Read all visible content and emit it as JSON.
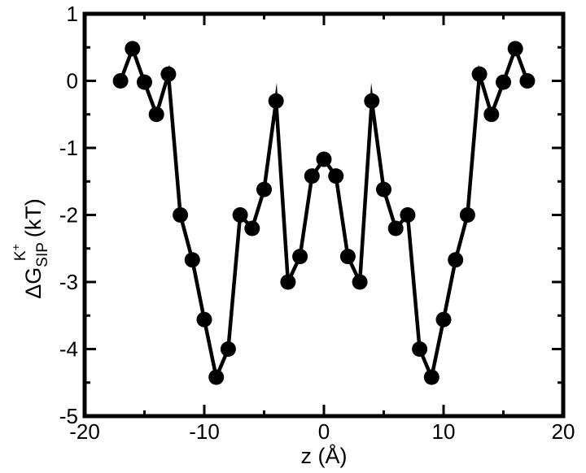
{
  "chart_data": {
    "type": "line",
    "xlabel": "z (Å)",
    "ylabel": {
      "base": "ΔG",
      "subscript": "SIP",
      "superscript_ion": "K",
      "superscript_charge": "+",
      "unit": "(kT)"
    },
    "xlim": [
      -20,
      20
    ],
    "ylim": [
      -5,
      1
    ],
    "x_ticks": [
      -20,
      -10,
      0,
      10,
      20
    ],
    "x_tick_labels": [
      "-20",
      "-10",
      "0",
      "10",
      "20"
    ],
    "y_ticks": [
      -5,
      -4,
      -3,
      -2,
      -1,
      0,
      1
    ],
    "y_tick_labels": [
      "-5",
      "-4",
      "-3",
      "-2",
      "-1",
      "0",
      "1"
    ],
    "grid": false,
    "legend": "none",
    "series": [
      {
        "color": "#000000",
        "marker": "filled-circle",
        "x": [
          -17,
          -16,
          -15,
          -14,
          -13,
          -12,
          -11,
          -10,
          -9,
          -8,
          -7,
          -6,
          -5,
          -4,
          -3,
          -2,
          -1,
          0,
          1,
          2,
          3,
          4,
          5,
          6,
          7,
          8,
          9,
          10,
          11,
          12,
          13,
          14,
          15,
          16,
          17
        ],
        "y": [
          0.0,
          0.48,
          -0.02,
          -0.5,
          0.1,
          -2.0,
          -2.67,
          -3.56,
          -4.42,
          -4.0,
          -2.0,
          -2.2,
          -1.62,
          -0.3,
          -3.0,
          -2.62,
          -1.42,
          -1.17,
          -1.42,
          -2.62,
          -3.0,
          -0.3,
          -1.62,
          -2.2,
          -2.0,
          -4.0,
          -4.42,
          -3.56,
          -2.67,
          -2.0,
          0.1,
          -0.5,
          -0.02,
          0.48,
          0.0
        ]
      }
    ]
  }
}
